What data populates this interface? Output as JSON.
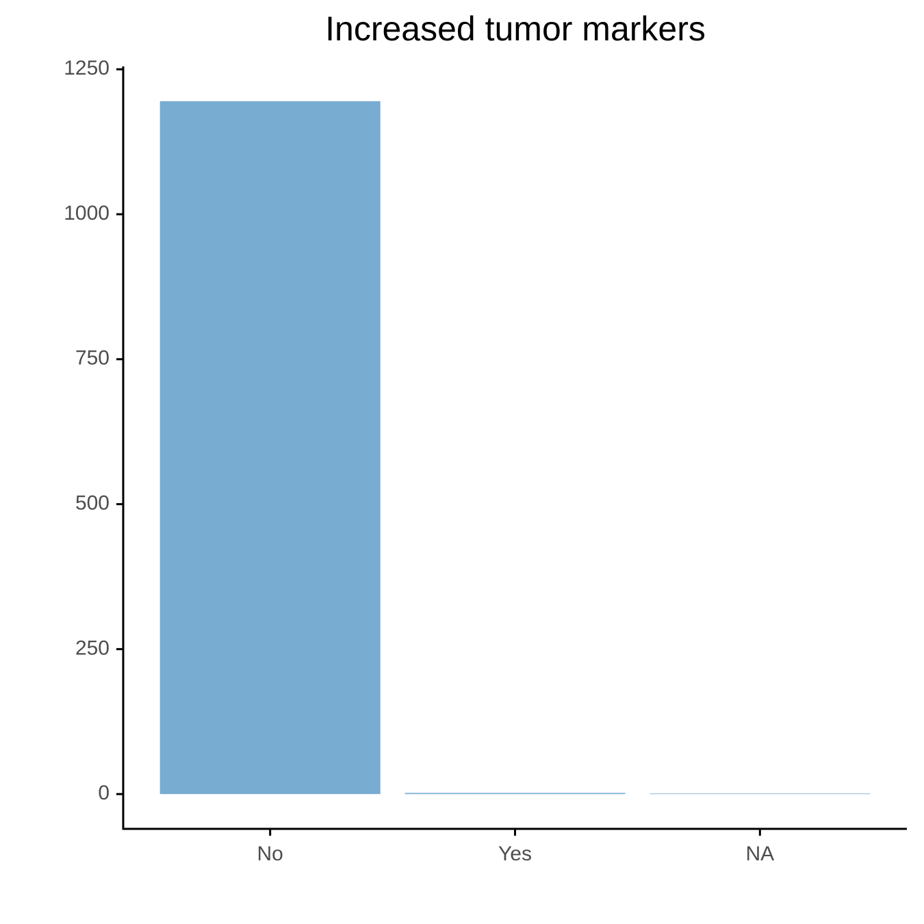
{
  "chart_data": {
    "type": "bar",
    "title": "Increased tumor markers",
    "categories": [
      "No",
      "Yes",
      "NA"
    ],
    "values": [
      1195,
      2,
      1
    ],
    "color": "#78acd1",
    "ylim": [
      -60,
      1255
    ],
    "yticks": [
      0,
      250,
      500,
      750,
      1000,
      1250
    ],
    "grid": false
  }
}
